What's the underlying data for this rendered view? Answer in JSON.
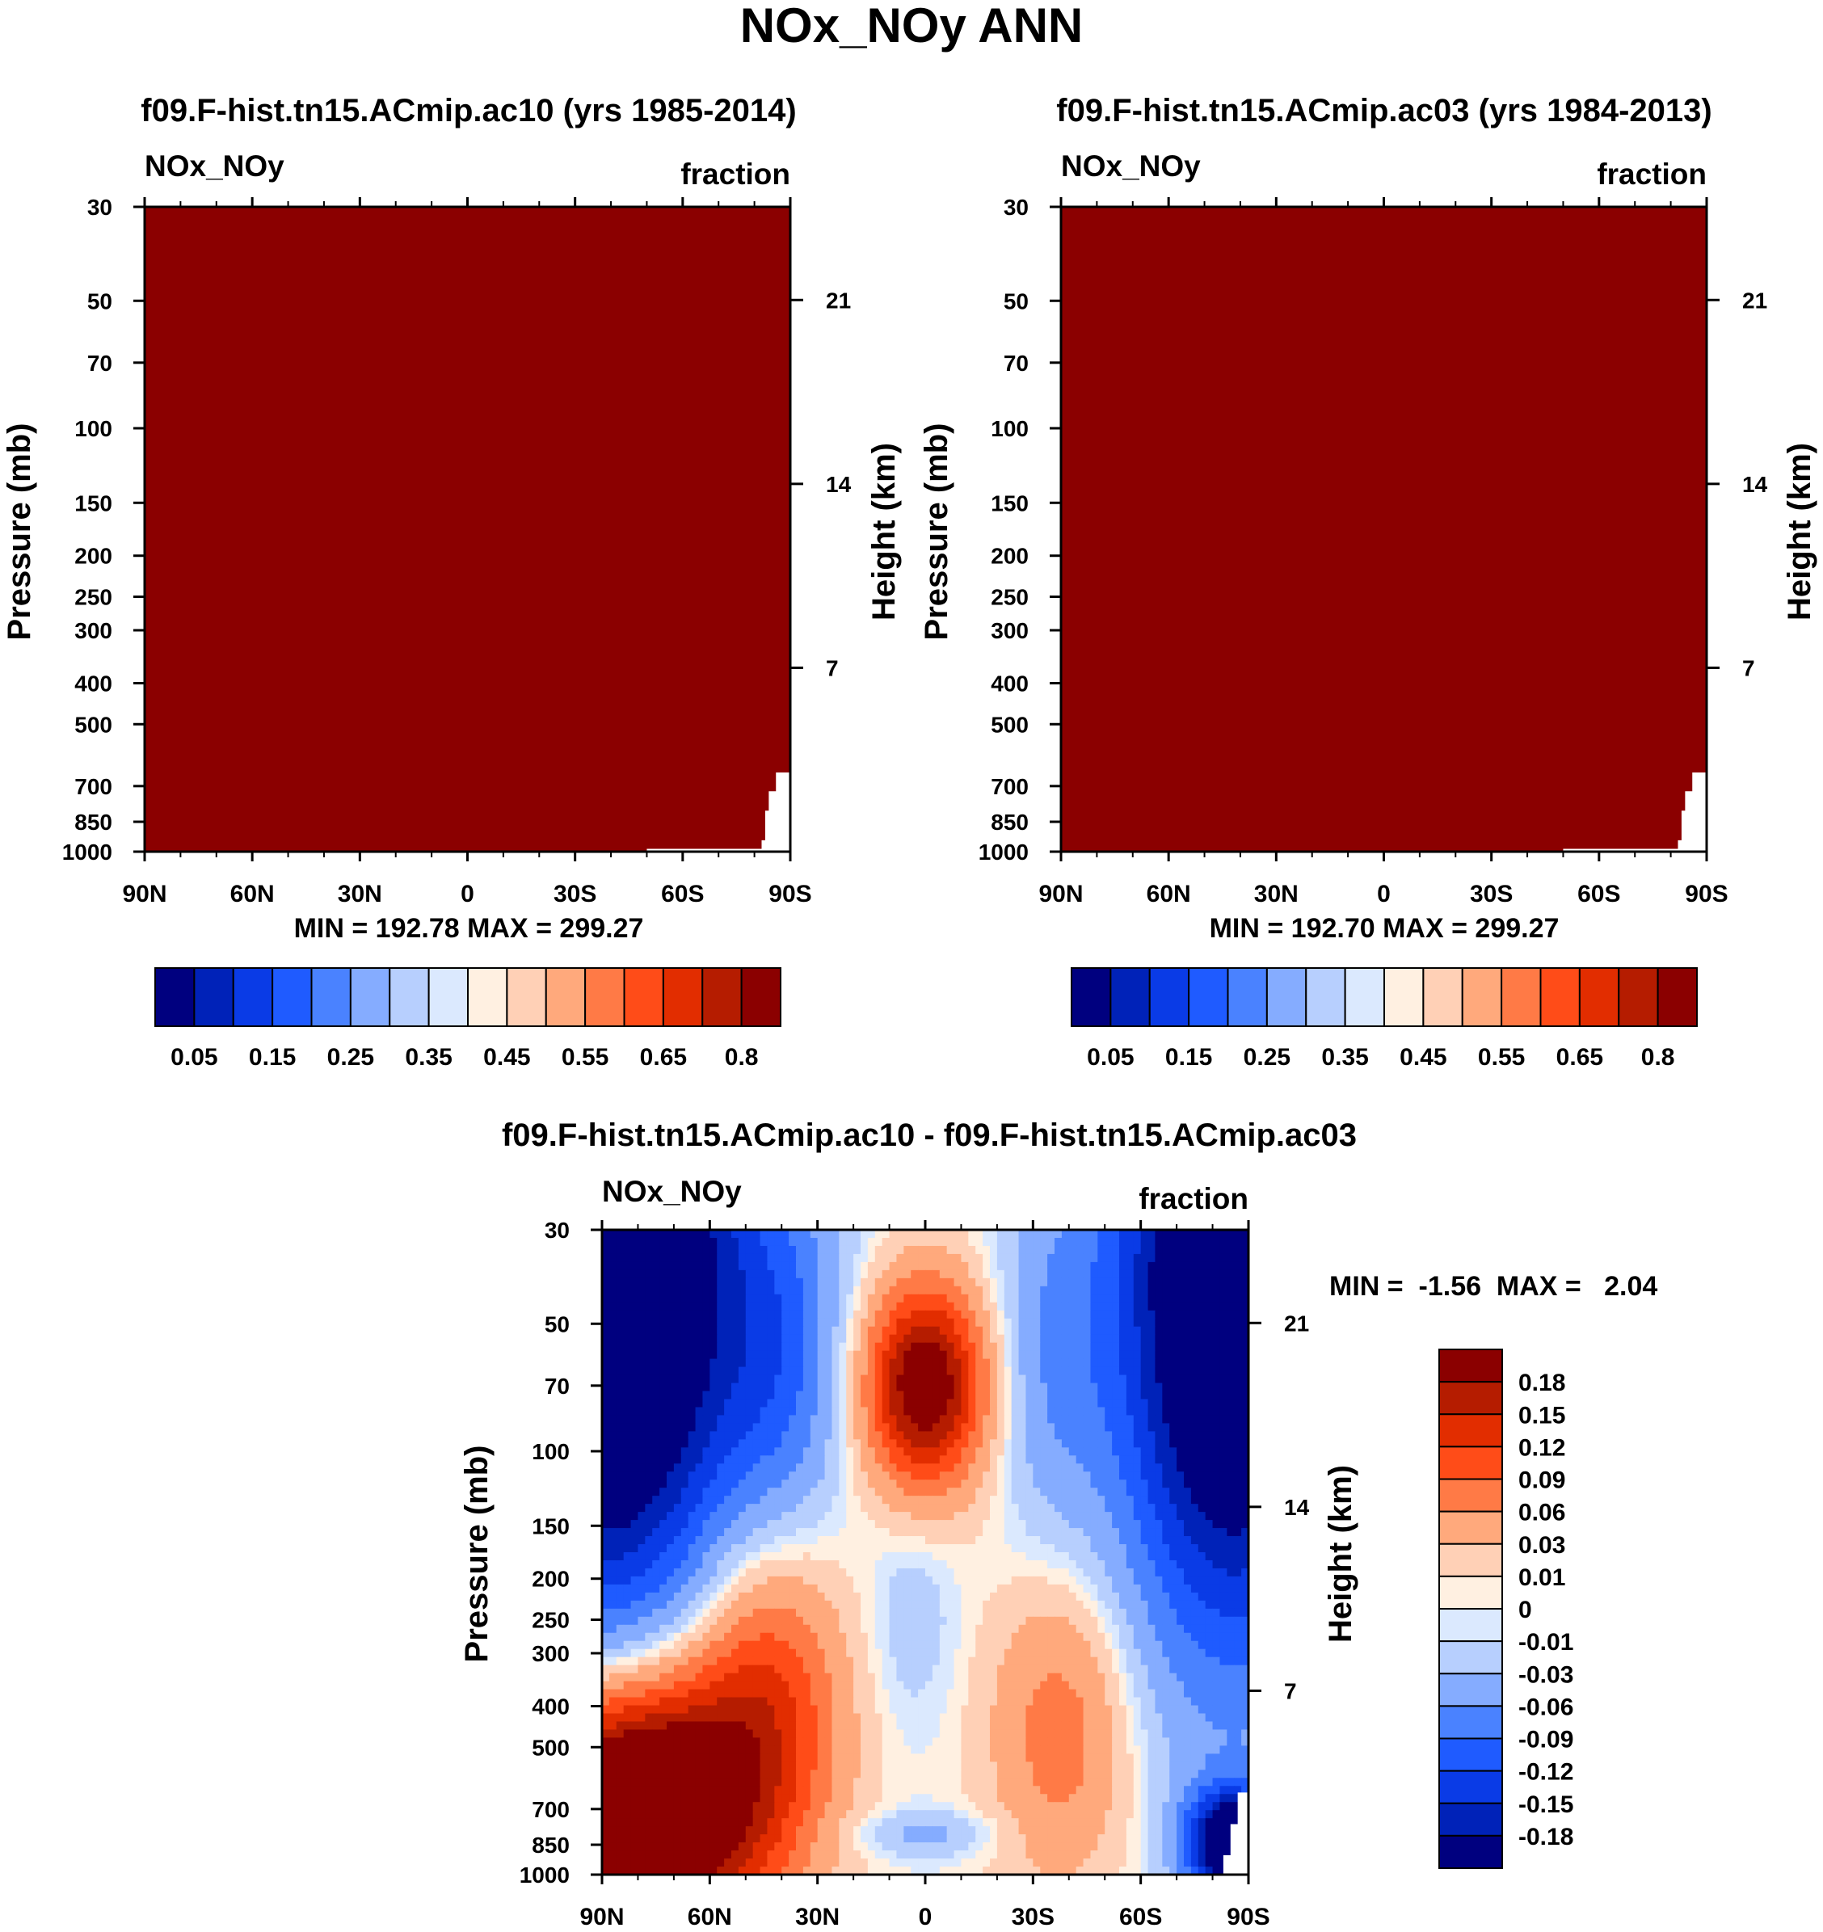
{
  "page_title": "NOx_NOy ANN",
  "colors": {
    "top_palette": [
      "#00007f",
      "#0022b8",
      "#0a3be6",
      "#1f5bff",
      "#4a82ff",
      "#85acff",
      "#b7cffe",
      "#dbe9fe",
      "#fff0e1",
      "#ffd0b6",
      "#ffa97c",
      "#ff7a46",
      "#ff4c18",
      "#e22d00",
      "#b51c00",
      "#8b0000"
    ],
    "diff_palette": [
      "#00007f",
      "#0022b8",
      "#0a3be6",
      "#1f5bff",
      "#4a82ff",
      "#85acff",
      "#b7cffe",
      "#dbe9fe",
      "#fff0e1",
      "#ffd0b6",
      "#ffa97c",
      "#ff7a46",
      "#ff4c18",
      "#e22d00",
      "#b51c00",
      "#8b0000"
    ],
    "field_fill": "#8b0000"
  },
  "chart_data": [
    {
      "type": "heatmap",
      "title": "f09.F-hist.tn15.ACmip.ac10 (yrs 1985-2014)",
      "left_label": "NOx_NOy",
      "right_label": "fraction",
      "xlabel": "",
      "ylabel": "Pressure (mb)",
      "ylabel_right": "Height (km)",
      "x_ticks": [
        "90N",
        "60N",
        "30N",
        "0",
        "30S",
        "60S",
        "90S"
      ],
      "x_range": [
        90,
        -90
      ],
      "y_ticks": [
        30,
        50,
        70,
        100,
        150,
        200,
        250,
        300,
        400,
        500,
        700,
        850,
        1000
      ],
      "y_range_mb": [
        30,
        1000
      ],
      "y_scale": "log",
      "height_ticks_km": [
        21,
        14,
        7
      ],
      "stats_text": "MIN = 192.78  MAX = 299.27",
      "colorbar_labels": [
        "0.05",
        "0.15",
        "0.25",
        "0.35",
        "0.45",
        "0.55",
        "0.65",
        "0.8"
      ],
      "field": "uniform maximum (>0.8) everywhere; missing region near 90S surface"
    },
    {
      "type": "heatmap",
      "title": "f09.F-hist.tn15.ACmip.ac03 (yrs 1984-2013)",
      "left_label": "NOx_NOy",
      "right_label": "fraction",
      "xlabel": "",
      "ylabel": "Pressure (mb)",
      "ylabel_right": "Height (km)",
      "x_ticks": [
        "90N",
        "60N",
        "30N",
        "0",
        "30S",
        "60S",
        "90S"
      ],
      "x_range": [
        90,
        -90
      ],
      "y_ticks": [
        30,
        50,
        70,
        100,
        150,
        200,
        250,
        300,
        400,
        500,
        700,
        850,
        1000
      ],
      "y_range_mb": [
        30,
        1000
      ],
      "y_scale": "log",
      "height_ticks_km": [
        21,
        14,
        7
      ],
      "stats_text": "MIN = 192.70  MAX = 299.27",
      "colorbar_labels": [
        "0.05",
        "0.15",
        "0.25",
        "0.35",
        "0.45",
        "0.55",
        "0.65",
        "0.8"
      ],
      "field": "uniform maximum (>0.8) everywhere; missing region near 90S surface"
    },
    {
      "type": "heatmap",
      "title": "f09.F-hist.tn15.ACmip.ac10 - f09.F-hist.tn15.ACmip.ac03",
      "left_label": "NOx_NOy",
      "right_label": "fraction",
      "xlabel": "",
      "ylabel": "Pressure (mb)",
      "ylabel_right": "Height (km)",
      "x_ticks": [
        "90N",
        "60N",
        "30N",
        "0",
        "30S",
        "60S",
        "90S"
      ],
      "x_range": [
        90,
        -90
      ],
      "y_ticks": [
        30,
        50,
        70,
        100,
        150,
        200,
        250,
        300,
        400,
        500,
        700,
        850,
        1000
      ],
      "y_range_mb": [
        30,
        1000
      ],
      "y_scale": "log",
      "height_ticks_km": [
        21,
        14,
        7
      ],
      "stats_text": "MIN =  -1.56  MAX =   2.04",
      "colorbar_labels": [
        "0.18",
        "0.15",
        "0.12",
        "0.09",
        "0.06",
        "0.03",
        "0.01",
        "0",
        "-0.01",
        "-0.03",
        "-0.06",
        "-0.09",
        "-0.12",
        "-0.15",
        "-0.18"
      ],
      "contour_levels": [
        -0.18,
        -0.15,
        -0.12,
        -0.09,
        -0.06,
        -0.03,
        -0.01,
        0,
        0.01,
        0.03,
        0.06,
        0.09,
        0.12,
        0.15,
        0.18
      ]
    }
  ]
}
